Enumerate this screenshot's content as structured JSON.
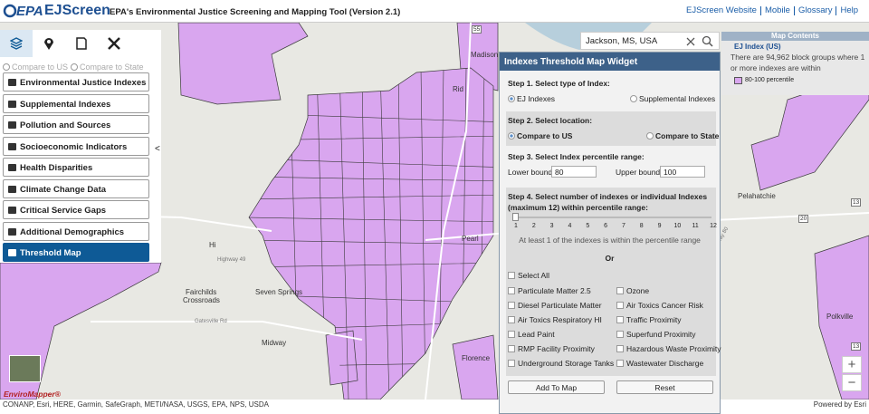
{
  "header": {
    "logo": "EPA",
    "title": "EJScreen",
    "subtitle": "EPA's Environmental Justice Screening and Mapping Tool (Version 2.1)",
    "links": [
      "EJScreen Website",
      "Mobile",
      "Glossary",
      "Help"
    ]
  },
  "sidebar": {
    "compare": [
      "Compare to US",
      "Compare to State"
    ],
    "collapse": "<",
    "menu": [
      "Environmental Justice Indexes",
      "Supplemental Indexes",
      "Pollution and Sources",
      "Socioeconomic Indicators",
      "Health Disparities",
      "Climate Change Data",
      "Critical Service Gaps",
      "Additional Demographics",
      "Threshold Map"
    ]
  },
  "search": {
    "query": "Jackson, MS, USA"
  },
  "map": {
    "labels": [
      "Madison",
      "Rid",
      "Pelahatchie",
      "Hi",
      "Fairchilds",
      "Crossroads",
      "Seven Springs",
      "Midway",
      "Florence",
      "Polkville",
      "Pearl",
      "Highway 49",
      "Highway 80",
      "Gatesville Rd"
    ],
    "shields": [
      "55",
      "20",
      "13",
      "13"
    ]
  },
  "map_contents": {
    "title": "Map Contents",
    "layer": "EJ Index (US)",
    "description": "There are 94,962 block groups where 1 or more indexes are within",
    "legend": "80-100 percentile"
  },
  "widget": {
    "title": "Indexes Threshold Map Widget",
    "step1": {
      "label": "Step 1. Select type of Index:",
      "options": [
        "EJ Indexes",
        "Supplemental Indexes"
      ]
    },
    "step2": {
      "label": "Step 2. Select location:",
      "options": [
        "Compare to US",
        "Compare to State"
      ]
    },
    "step3": {
      "label": "Step 3. Select Index percentile range:",
      "lower_label": "Lower bound:",
      "lower": 80,
      "upper_label": "Upper bound:",
      "upper": 100
    },
    "step4": {
      "label": "Step 4. Select number of indexes or individual Indexes (maximum 12) within percentile range:",
      "ticks": [
        1,
        2,
        3,
        4,
        5,
        6,
        7,
        8,
        9,
        10,
        11,
        12
      ],
      "summary": "At least 1 of the indexes is within the percentile range",
      "or": "Or",
      "select_all": "Select All",
      "indexes": [
        "Particulate Matter 2.5",
        "Ozone",
        "Diesel Particulate Matter",
        "Air Toxics Cancer Risk",
        "Air Toxics Respiratory HI",
        "Traffic Proximity",
        "Lead Paint",
        "Superfund Proximity",
        "RMP Facility Proximity",
        "Hazardous Waste Proximity",
        "Underground Storage Tanks",
        "Wastewater Discharge"
      ]
    },
    "buttons": [
      "Add To Map",
      "Reset"
    ]
  },
  "footer": {
    "enviromapper": "EnviroMapper®",
    "attribution": "CONANP, Esri, HERE, Garmin, SafeGraph, METI/NASA, USGS, EPA, NPS, USDA",
    "powered_by": "Powered by Esri"
  },
  "zoom": {
    "in": "+",
    "out": "−"
  }
}
